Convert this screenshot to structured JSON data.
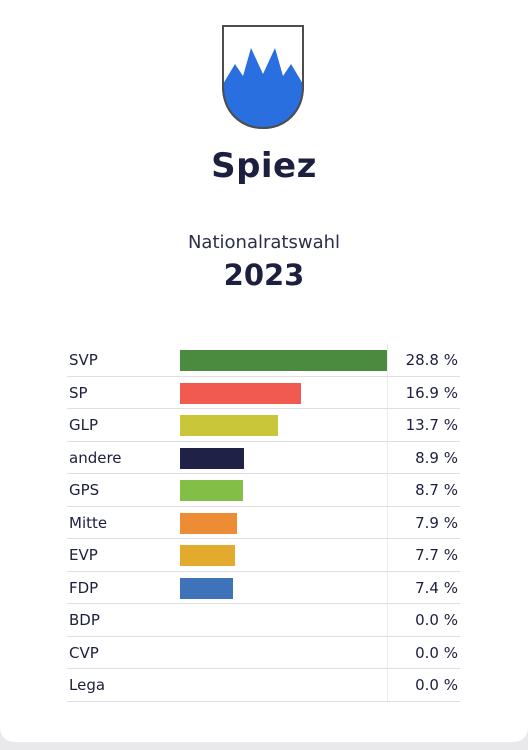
{
  "municipality": "Spiez",
  "election": "Nationalratswahl",
  "year": "2023",
  "crest": {
    "field_color": "#ffffff",
    "charge_color": "#2a6fe0",
    "outline_color": "#4d4d4d"
  },
  "chart_data": {
    "type": "bar",
    "orientation": "horizontal",
    "unit": "%",
    "xlim": [
      0,
      28.8
    ],
    "categories": [
      "SVP",
      "SP",
      "GLP",
      "andere",
      "GPS",
      "Mitte",
      "EVP",
      "FDP",
      "BDP",
      "CVP",
      "Lega"
    ],
    "values": [
      28.8,
      16.9,
      13.7,
      8.9,
      8.7,
      7.9,
      7.7,
      7.4,
      0.0,
      0.0,
      0.0
    ],
    "labels": [
      "28.8 %",
      "16.9 %",
      "13.7 %",
      "8.9 %",
      "8.7 %",
      "7.9 %",
      "7.7 %",
      "7.4 %",
      "0.0 %",
      "0.0 %",
      "0.0 %"
    ],
    "colors": [
      "#4a8b3f",
      "#f05a50",
      "#c9c63a",
      "#1f2146",
      "#83bf46",
      "#ec8d35",
      "#e3ab2d",
      "#3e73ba",
      "#cccccc",
      "#cccccc",
      "#cccccc"
    ]
  }
}
